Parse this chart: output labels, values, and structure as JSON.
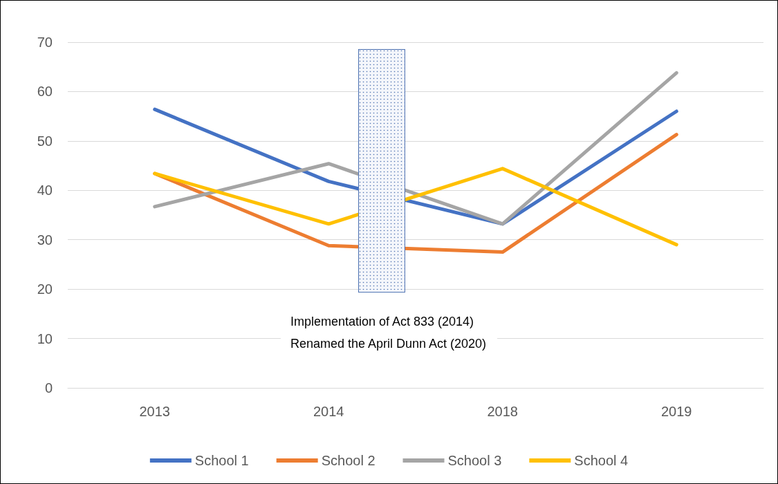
{
  "chart_data": {
    "type": "line",
    "categories": [
      "2013",
      "2014",
      "2018",
      "2019"
    ],
    "series": [
      {
        "name": "School 1",
        "color": "#4472c4",
        "values": [
          56.4,
          41.8,
          33.2,
          56.0
        ]
      },
      {
        "name": "School 2",
        "color": "#ed7d31",
        "values": [
          43.4,
          28.8,
          27.5,
          51.3
        ]
      },
      {
        "name": "School 3",
        "color": "#a5a5a5",
        "values": [
          36.7,
          45.4,
          33.2,
          63.8
        ]
      },
      {
        "name": "School 4",
        "color": "#ffc000",
        "values": [
          43.4,
          33.2,
          44.4,
          29.0
        ]
      }
    ],
    "ylim": [
      0,
      70
    ],
    "yticks": [
      0,
      10,
      20,
      30,
      40,
      50,
      60,
      70
    ],
    "grid": "y",
    "legend": "bottom",
    "marker": "none",
    "line_style": "solid",
    "bands": [
      {
        "axis": "y",
        "from": 19.3,
        "to": 68.6,
        "color": "#4a6fb0"
      }
    ],
    "annotations": [
      "Implementation of Act 833 (2014)\nRenamed the April Dunn Act (2020)"
    ]
  }
}
